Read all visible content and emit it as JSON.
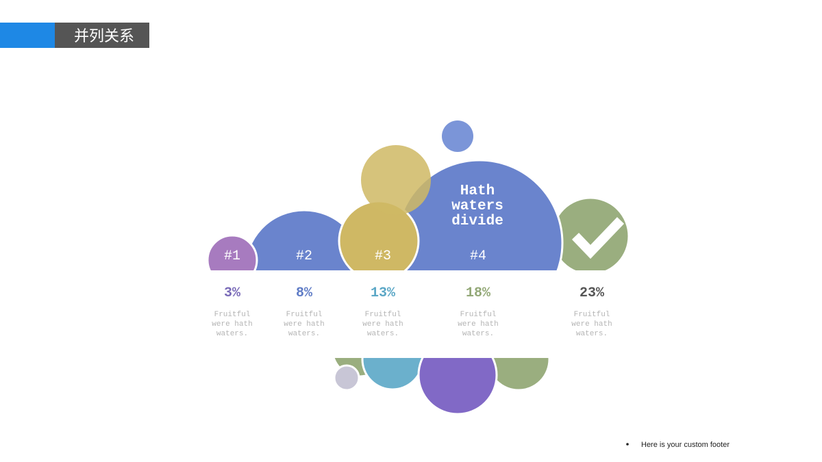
{
  "header": {
    "title": "并列关系"
  },
  "center_text": {
    "lines": [
      "Hath",
      "waters",
      "divide"
    ]
  },
  "items": [
    {
      "label": "#1",
      "percent": "3%",
      "description": [
        "Fruitful",
        "were hath",
        "waters."
      ]
    },
    {
      "label": "#2",
      "percent": "8%",
      "description": [
        "Fruitful",
        "were hath",
        "waters."
      ]
    },
    {
      "label": "#3",
      "percent": "13%",
      "description": [
        "Fruitful",
        "were hath",
        "waters."
      ]
    },
    {
      "label": "#4",
      "percent": "18%",
      "description": [
        "Fruitful",
        "were hath",
        "waters."
      ]
    },
    {
      "percent": "23%",
      "description": [
        "Fruitful",
        "were hath",
        "waters."
      ]
    }
  ],
  "footer": {
    "text": "Here is your custom footer"
  }
}
